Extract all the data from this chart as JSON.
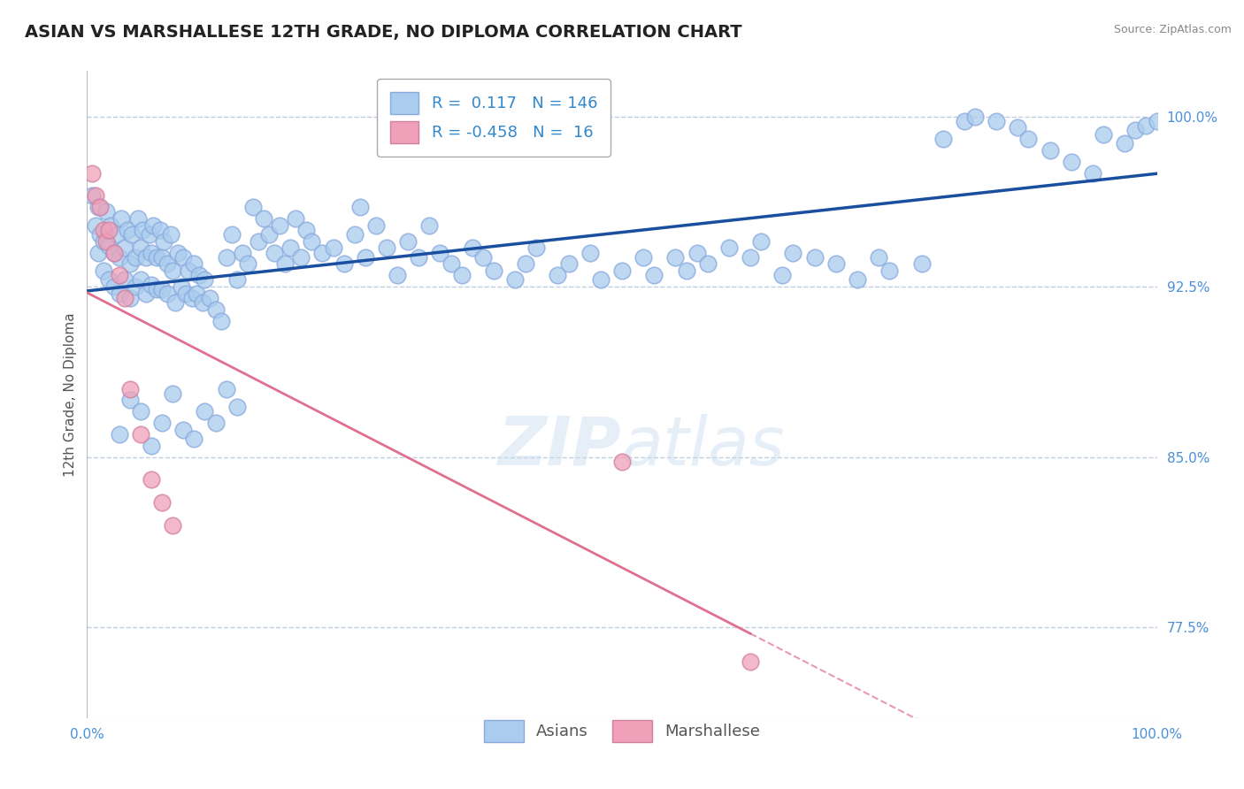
{
  "title": "ASIAN VS MARSHALLESE 12TH GRADE, NO DIPLOMA CORRELATION CHART",
  "source_text": "Source: ZipAtlas.com",
  "ylabel": "12th Grade, No Diploma",
  "xlim": [
    0.0,
    1.0
  ],
  "ylim": [
    0.735,
    1.02
  ],
  "yticks": [
    0.775,
    0.85,
    0.925,
    1.0
  ],
  "ytick_labels": [
    "77.5%",
    "85.0%",
    "92.5%",
    "100.0%"
  ],
  "xtick_labels": [
    "0.0%",
    "100.0%"
  ],
  "xticks": [
    0.0,
    1.0
  ],
  "legend_r_asian": " 0.117",
  "legend_n_asian": "146",
  "legend_r_marsh": "-0.458",
  "legend_n_marsh": " 16",
  "asian_color": "#aaccee",
  "marsh_color": "#f0a0b8",
  "trend_asian_color": "#1a4fa0",
  "trend_marsh_color": "#e07090",
  "background_color": "#ffffff",
  "grid_color": "#c0d0e0",
  "watermark_color": "#c8ddf0",
  "asian_points_x": [
    0.005,
    0.008,
    0.01,
    0.01,
    0.012,
    0.015,
    0.015,
    0.018,
    0.02,
    0.02,
    0.022,
    0.025,
    0.025,
    0.028,
    0.03,
    0.03,
    0.032,
    0.035,
    0.035,
    0.038,
    0.04,
    0.04,
    0.042,
    0.045,
    0.045,
    0.048,
    0.05,
    0.05,
    0.052,
    0.055,
    0.055,
    0.058,
    0.06,
    0.06,
    0.062,
    0.065,
    0.065,
    0.068,
    0.07,
    0.07,
    0.072,
    0.075,
    0.075,
    0.078,
    0.08,
    0.082,
    0.085,
    0.088,
    0.09,
    0.092,
    0.095,
    0.098,
    0.1,
    0.102,
    0.105,
    0.108,
    0.11,
    0.115,
    0.12,
    0.125,
    0.13,
    0.135,
    0.14,
    0.145,
    0.15,
    0.155,
    0.16,
    0.165,
    0.17,
    0.175,
    0.18,
    0.185,
    0.19,
    0.195,
    0.2,
    0.205,
    0.21,
    0.22,
    0.23,
    0.24,
    0.25,
    0.255,
    0.26,
    0.27,
    0.28,
    0.29,
    0.3,
    0.31,
    0.32,
    0.33,
    0.34,
    0.35,
    0.36,
    0.37,
    0.38,
    0.4,
    0.41,
    0.42,
    0.44,
    0.45,
    0.47,
    0.48,
    0.5,
    0.52,
    0.53,
    0.55,
    0.56,
    0.57,
    0.58,
    0.6,
    0.62,
    0.63,
    0.65,
    0.66,
    0.68,
    0.7,
    0.72,
    0.74,
    0.75,
    0.78,
    0.8,
    0.82,
    0.83,
    0.85,
    0.87,
    0.88,
    0.9,
    0.92,
    0.94,
    0.95,
    0.97,
    0.98,
    0.99,
    1.0,
    0.03,
    0.04,
    0.05,
    0.06,
    0.07,
    0.08,
    0.09,
    0.1,
    0.11,
    0.12,
    0.13,
    0.14
  ],
  "asian_points_y": [
    0.965,
    0.952,
    0.96,
    0.94,
    0.948,
    0.945,
    0.932,
    0.958,
    0.943,
    0.928,
    0.952,
    0.94,
    0.925,
    0.948,
    0.938,
    0.922,
    0.955,
    0.942,
    0.928,
    0.95,
    0.935,
    0.92,
    0.948,
    0.938,
    0.925,
    0.955,
    0.942,
    0.928,
    0.95,
    0.938,
    0.922,
    0.948,
    0.94,
    0.926,
    0.952,
    0.938,
    0.924,
    0.95,
    0.938,
    0.924,
    0.945,
    0.935,
    0.922,
    0.948,
    0.932,
    0.918,
    0.94,
    0.925,
    0.938,
    0.922,
    0.932,
    0.92,
    0.935,
    0.922,
    0.93,
    0.918,
    0.928,
    0.92,
    0.915,
    0.91,
    0.938,
    0.948,
    0.928,
    0.94,
    0.935,
    0.96,
    0.945,
    0.955,
    0.948,
    0.94,
    0.952,
    0.935,
    0.942,
    0.955,
    0.938,
    0.95,
    0.945,
    0.94,
    0.942,
    0.935,
    0.948,
    0.96,
    0.938,
    0.952,
    0.942,
    0.93,
    0.945,
    0.938,
    0.952,
    0.94,
    0.935,
    0.93,
    0.942,
    0.938,
    0.932,
    0.928,
    0.935,
    0.942,
    0.93,
    0.935,
    0.94,
    0.928,
    0.932,
    0.938,
    0.93,
    0.938,
    0.932,
    0.94,
    0.935,
    0.942,
    0.938,
    0.945,
    0.93,
    0.94,
    0.938,
    0.935,
    0.928,
    0.938,
    0.932,
    0.935,
    0.99,
    0.998,
    1.0,
    0.998,
    0.995,
    0.99,
    0.985,
    0.98,
    0.975,
    0.992,
    0.988,
    0.994,
    0.996,
    0.998,
    0.86,
    0.875,
    0.87,
    0.855,
    0.865,
    0.878,
    0.862,
    0.858,
    0.87,
    0.865,
    0.88,
    0.872
  ],
  "marsh_points_x": [
    0.005,
    0.008,
    0.012,
    0.015,
    0.018,
    0.02,
    0.025,
    0.03,
    0.035,
    0.04,
    0.05,
    0.06,
    0.07,
    0.08,
    0.5,
    0.62
  ],
  "marsh_points_y": [
    0.975,
    0.965,
    0.96,
    0.95,
    0.945,
    0.95,
    0.94,
    0.93,
    0.92,
    0.88,
    0.86,
    0.84,
    0.83,
    0.82,
    0.848,
    0.76
  ],
  "title_fontsize": 14,
  "axis_label_fontsize": 11,
  "tick_fontsize": 11,
  "legend_fontsize": 13,
  "watermark_fontsize": 55
}
